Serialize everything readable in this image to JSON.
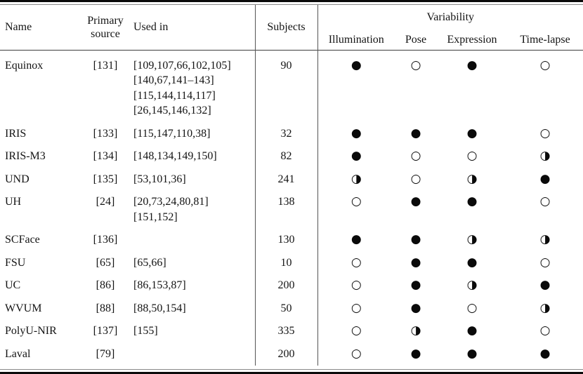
{
  "table": {
    "headers": {
      "name": "Name",
      "primary_source": "Primary\nsource",
      "used_in": "Used in",
      "subjects": "Subjects",
      "variability": "Variability",
      "variability_sub": [
        "Illumination",
        "Pose",
        "Expression",
        "Time-lapse"
      ]
    },
    "legend_symbols": {
      "filled": "●",
      "open": "○",
      "half": "◑"
    },
    "rows": [
      {
        "name": "Equinox",
        "source": "[131]",
        "used_in": "[109,107,66,102,105]\n[140,67,141–143]\n[115,144,114,117]\n[26,145,146,132]",
        "subjects": "90",
        "marks": [
          "●",
          "○",
          "●",
          "○"
        ]
      },
      {
        "name": "IRIS",
        "source": "[133]",
        "used_in": "[115,147,110,38]",
        "subjects": "32",
        "marks": [
          "●",
          "●",
          "●",
          "○"
        ]
      },
      {
        "name": "IRIS-M3",
        "source": "[134]",
        "used_in": "[148,134,149,150]",
        "subjects": "82",
        "marks": [
          "●",
          "○",
          "○",
          "◑"
        ]
      },
      {
        "name": "UND",
        "source": "[135]",
        "used_in": "[53,101,36]",
        "subjects": "241",
        "marks": [
          "◑",
          "○",
          "◑",
          "●"
        ]
      },
      {
        "name": "UH",
        "source": "[24]",
        "used_in": "[20,73,24,80,81]\n[151,152]",
        "subjects": "138",
        "marks": [
          "○",
          "●",
          "●",
          "○"
        ]
      },
      {
        "name": "SCFace",
        "source": "[136]",
        "used_in": "",
        "subjects": "130",
        "marks": [
          "●",
          "●",
          "◑",
          "◑"
        ]
      },
      {
        "name": "FSU",
        "source": "[65]",
        "used_in": "[65,66]",
        "subjects": "10",
        "marks": [
          "○",
          "●",
          "●",
          "○"
        ]
      },
      {
        "name": "UC",
        "source": "[86]",
        "used_in": "[86,153,87]",
        "subjects": "200",
        "marks": [
          "○",
          "●",
          "◑",
          "●"
        ]
      },
      {
        "name": "WVUM",
        "source": "[88]",
        "used_in": "[88,50,154]",
        "subjects": "50",
        "marks": [
          "○",
          "●",
          "○",
          "◑"
        ]
      },
      {
        "name": "PolyU-NIR",
        "source": "[137]",
        "used_in": "[155]",
        "subjects": "335",
        "marks": [
          "○",
          "◑",
          "●",
          "○"
        ]
      },
      {
        "name": "Laval",
        "source": "[79]",
        "used_in": "",
        "subjects": "200",
        "marks": [
          "○",
          "●",
          "●",
          "●"
        ]
      }
    ]
  }
}
